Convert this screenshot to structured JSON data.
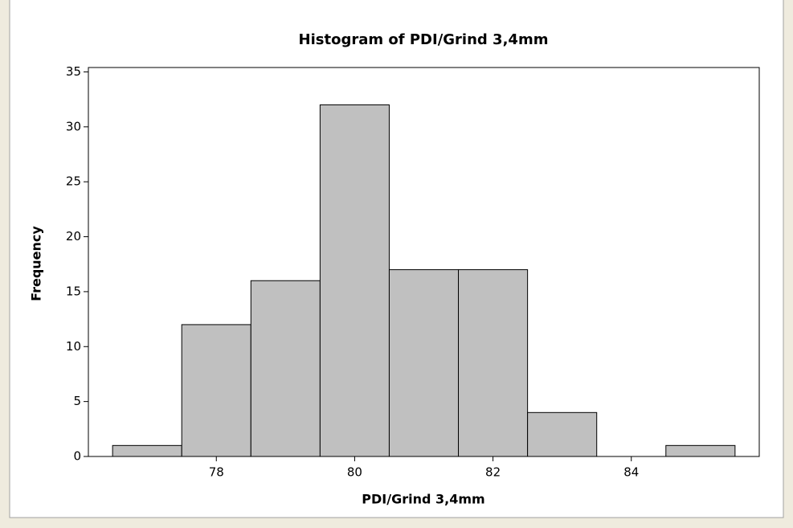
{
  "chart_data": {
    "type": "histogram",
    "title": "Histogram of PDI/Grind 3,4mm",
    "x_label": "PDI/Grind 3,4mm",
    "y_label": "Frequency",
    "bins": [
      76.5,
      77.5,
      78.5,
      79.5,
      80.5,
      81.5,
      82.5,
      83.5,
      84.5,
      85.5
    ],
    "values": [
      1,
      12,
      16,
      32,
      17,
      17,
      4,
      0,
      1
    ],
    "color": "#c0c0c0",
    "xlim": [
      76.15,
      85.85
    ],
    "xticks": [
      78,
      80,
      82,
      84
    ],
    "ylim": [
      0,
      35.4
    ],
    "yticks": [
      0,
      5,
      10,
      15,
      20,
      25,
      30,
      35
    ]
  }
}
